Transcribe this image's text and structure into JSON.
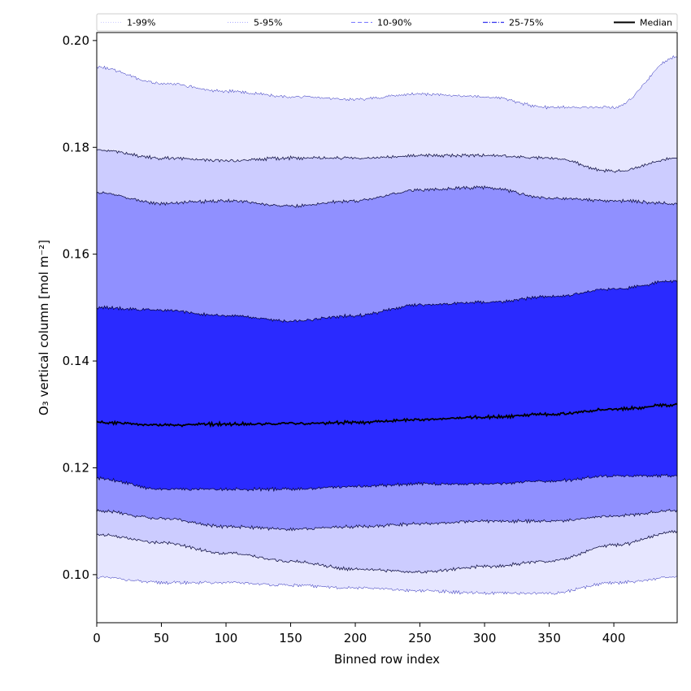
{
  "chart_data": {
    "type": "area",
    "title": "",
    "xlabel": "Binned row index",
    "ylabel": "O₃ vertical column [mol m⁻²]",
    "xlim": [
      0,
      449
    ],
    "ylim": [
      0.091,
      0.2015
    ],
    "xticks": [
      0,
      50,
      100,
      150,
      200,
      250,
      300,
      350,
      400
    ],
    "yticks": [
      0.1,
      0.12,
      0.14,
      0.16,
      0.18,
      0.2
    ],
    "ytick_labels": [
      "0.10",
      "0.12",
      "0.14",
      "0.16",
      "0.18",
      "0.20"
    ],
    "grid": false,
    "legend_position": "top (outside, horizontal)",
    "bands": [
      {
        "name": "1-99%",
        "fill": "#e6e6ff",
        "line_style": "dotted",
        "x": [
          0,
          50,
          100,
          150,
          200,
          250,
          300,
          350,
          400,
          449
        ],
        "lower": [
          0.0995,
          0.0985,
          0.0985,
          0.098,
          0.0975,
          0.097,
          0.0965,
          0.0965,
          0.0985,
          0.0995
        ],
        "upper": [
          0.195,
          0.192,
          0.1905,
          0.1895,
          0.189,
          0.19,
          0.1895,
          0.1875,
          0.1875,
          0.197
        ]
      },
      {
        "name": "5-95%",
        "fill": "#ccccff",
        "line_style": "dotted",
        "x": [
          0,
          50,
          100,
          150,
          200,
          250,
          300,
          350,
          400,
          449
        ],
        "lower": [
          0.1075,
          0.106,
          0.104,
          0.1025,
          0.101,
          0.1005,
          0.1015,
          0.1025,
          0.1055,
          0.108
        ],
        "upper": [
          0.1795,
          0.178,
          0.1775,
          0.178,
          0.178,
          0.1785,
          0.1785,
          0.178,
          0.1755,
          0.178
        ]
      },
      {
        "name": "10-90%",
        "fill": "#9090ff",
        "line_style": "dashed",
        "x": [
          0,
          50,
          100,
          150,
          200,
          250,
          300,
          350,
          400,
          449
        ],
        "lower": [
          0.112,
          0.1105,
          0.109,
          0.1085,
          0.109,
          0.1095,
          0.11,
          0.11,
          0.111,
          0.112
        ],
        "upper": [
          0.1715,
          0.1695,
          0.17,
          0.169,
          0.17,
          0.172,
          0.1725,
          0.1705,
          0.17,
          0.1695
        ]
      },
      {
        "name": "25-75%",
        "fill": "#5555ff",
        "line_style": "dashdot",
        "x": [
          0,
          50,
          100,
          150,
          200,
          250,
          300,
          350,
          400,
          449
        ],
        "lower": [
          0.118,
          0.116,
          0.116,
          0.116,
          0.1165,
          0.117,
          0.117,
          0.1175,
          0.1185,
          0.1185
        ],
        "upper": [
          0.15,
          0.1495,
          0.1485,
          0.1475,
          0.1485,
          0.1505,
          0.151,
          0.152,
          0.1535,
          0.155
        ]
      }
    ],
    "inner_fill": "#2a2aff",
    "series": [
      {
        "name": "Median",
        "color": "#000000",
        "x": [
          0,
          50,
          100,
          150,
          200,
          250,
          300,
          350,
          400,
          449
        ],
        "values": [
          0.1285,
          0.128,
          0.1282,
          0.1283,
          0.1285,
          0.129,
          0.1295,
          0.13,
          0.131,
          0.1318
        ]
      }
    ],
    "legend": [
      "1-99%",
      "5-95%",
      "10-90%",
      "25-75%",
      "Median"
    ]
  }
}
